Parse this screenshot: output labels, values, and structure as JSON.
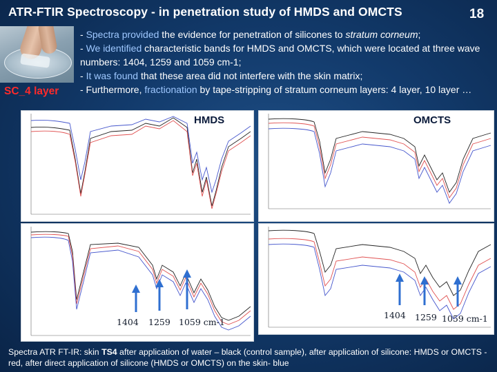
{
  "slide": {
    "title": "ATR-FTIR Spectroscopy - in penetration study of HMDS and OMCTS",
    "number": "18"
  },
  "photo_label": "SC_4 layer",
  "bullets": {
    "b1_pre": "- ",
    "b1_hl": "Spectra provided",
    "b1_mid": " the evidence for penetration of silicones to ",
    "b1_it": "stratum corneum",
    "b1_end": ";",
    "b2_pre": "- ",
    "b2_hl": "We identified",
    "b2_rest": " characteristic bands for HMDS and OMCTS, which were located at three wave numbers: 1404, 1259 and 1059 cm-1;",
    "b3_pre": "- ",
    "b3_hl": "It was found",
    "b3_rest": " that these area did not interfere with the skin matrix;",
    "b4_pre": "- Furthermore, ",
    "b4_hl": "fractionation",
    "b4_rest": " by tape-stripping of stratum corneum layers: 4 layer, 10 layer …"
  },
  "spectra": {
    "hmds_label": "HMDS",
    "omcts_label": "OMCTS",
    "bands_left": [
      "1404",
      "1259",
      "1059 cm-1"
    ],
    "bands_right": [
      "1404",
      "1259",
      "1059 cm-1"
    ]
  },
  "caption": {
    "pre": "Spectra ATR FT-IR: skin ",
    "bold": "TS4",
    "rest": " after application of water – black (control sample), after application of silicone: HMDS or OMCTS - red, after direct application of silicone (HMDS or OMCTS) on the skin- blue"
  },
  "colors": {
    "control": "#222222",
    "silicone": "#e05050",
    "direct": "#4455cc",
    "arrow": "#2f6fd0",
    "photo_label": "#ff2a2a",
    "highlight": "#9fc8ff"
  }
}
